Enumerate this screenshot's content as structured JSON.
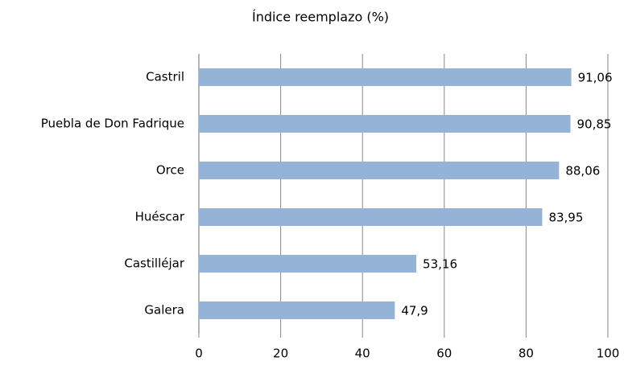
{
  "chart_data": {
    "type": "bar",
    "orientation": "horizontal",
    "title": "Índice reemplazo (%)",
    "categories": [
      "Castril",
      "Puebla de Don Fadrique",
      "Orce",
      "Huéscar",
      "Castilléjar",
      "Galera"
    ],
    "values": [
      91.06,
      90.85,
      88.06,
      83.95,
      53.16,
      47.9
    ],
    "value_labels": [
      "91,06",
      "90,85",
      "88,06",
      "83,95",
      "53,16",
      "47,9"
    ],
    "color": "#95b3d7",
    "xlim": [
      0,
      100
    ],
    "xticks": [
      0,
      20,
      40,
      60,
      80,
      100
    ],
    "grid": true
  }
}
